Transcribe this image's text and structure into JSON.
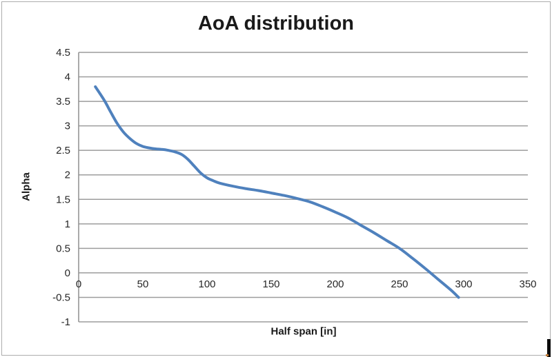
{
  "chart_data": {
    "type": "line",
    "title": "AoA distribution",
    "xlabel": "Half span [in]",
    "ylabel": "Alpha",
    "xlim": [
      0,
      350
    ],
    "ylim": [
      -1,
      4.5
    ],
    "grid": "horizontal-only",
    "legend": "none",
    "x_ticks": [
      "0",
      "50",
      "100",
      "150",
      "200",
      "250",
      "300",
      "350"
    ],
    "y_ticks": [
      "4.5",
      "4",
      "3.5",
      "3",
      "2.5",
      "2",
      "1.5",
      "1",
      "0.5",
      "0",
      "-0.5",
      "-1"
    ],
    "series": [
      {
        "name": "AoA",
        "color": "#4F81BD",
        "line_width": 4,
        "smooth": true,
        "points": [
          [
            13,
            3.8
          ],
          [
            20,
            3.52
          ],
          [
            25,
            3.28
          ],
          [
            30,
            3.05
          ],
          [
            35,
            2.87
          ],
          [
            40,
            2.74
          ],
          [
            45,
            2.64
          ],
          [
            50,
            2.58
          ],
          [
            55,
            2.55
          ],
          [
            60,
            2.53
          ],
          [
            65,
            2.52
          ],
          [
            70,
            2.5
          ],
          [
            75,
            2.47
          ],
          [
            80,
            2.42
          ],
          [
            85,
            2.32
          ],
          [
            90,
            2.18
          ],
          [
            95,
            2.04
          ],
          [
            100,
            1.94
          ],
          [
            105,
            1.88
          ],
          [
            110,
            1.83
          ],
          [
            120,
            1.77
          ],
          [
            130,
            1.72
          ],
          [
            140,
            1.68
          ],
          [
            150,
            1.63
          ],
          [
            160,
            1.58
          ],
          [
            170,
            1.52
          ],
          [
            180,
            1.45
          ],
          [
            190,
            1.35
          ],
          [
            200,
            1.24
          ],
          [
            210,
            1.12
          ],
          [
            220,
            0.97
          ],
          [
            230,
            0.82
          ],
          [
            240,
            0.66
          ],
          [
            250,
            0.5
          ],
          [
            260,
            0.3
          ],
          [
            270,
            0.09
          ],
          [
            280,
            -0.13
          ],
          [
            290,
            -0.35
          ],
          [
            296,
            -0.5
          ]
        ]
      }
    ],
    "colors": {
      "gridline": "#9c9c9c",
      "axis": "#8e8e8e",
      "text": "#262626",
      "background": "#ffffff",
      "chart_border": "#ababab"
    }
  }
}
